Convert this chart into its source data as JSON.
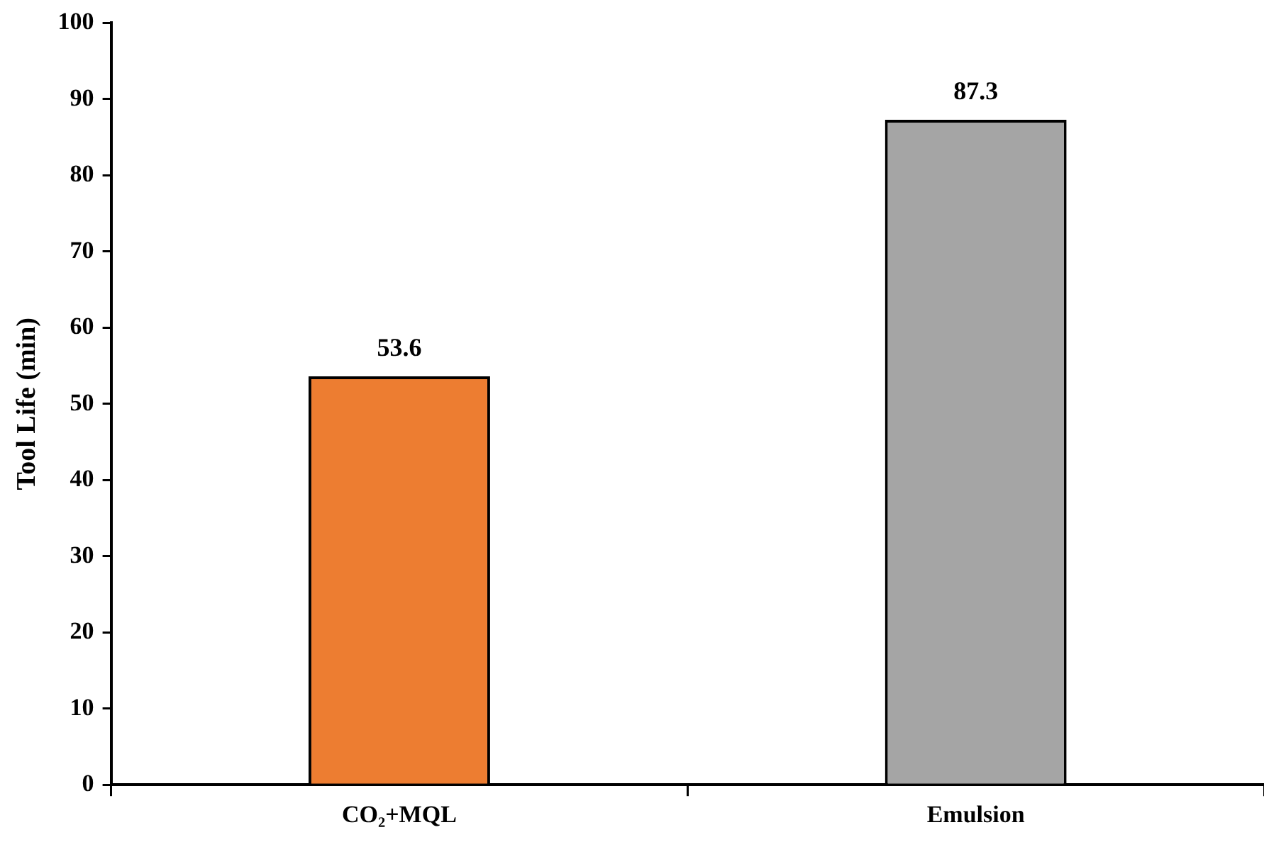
{
  "chart_data": {
    "type": "bar",
    "ylabel": "Tool Life (min)",
    "categories": [
      "CO₂+MQL",
      "Emulsion"
    ],
    "values": [
      53.6,
      87.3
    ],
    "colors": [
      "#ed7d31",
      "#a5a5a5"
    ],
    "ylim": [
      0,
      100
    ],
    "yticks": [
      0,
      10,
      20,
      30,
      40,
      50,
      60,
      70,
      80,
      90,
      100
    ],
    "grid": false,
    "legend": false,
    "data_labels": true
  }
}
